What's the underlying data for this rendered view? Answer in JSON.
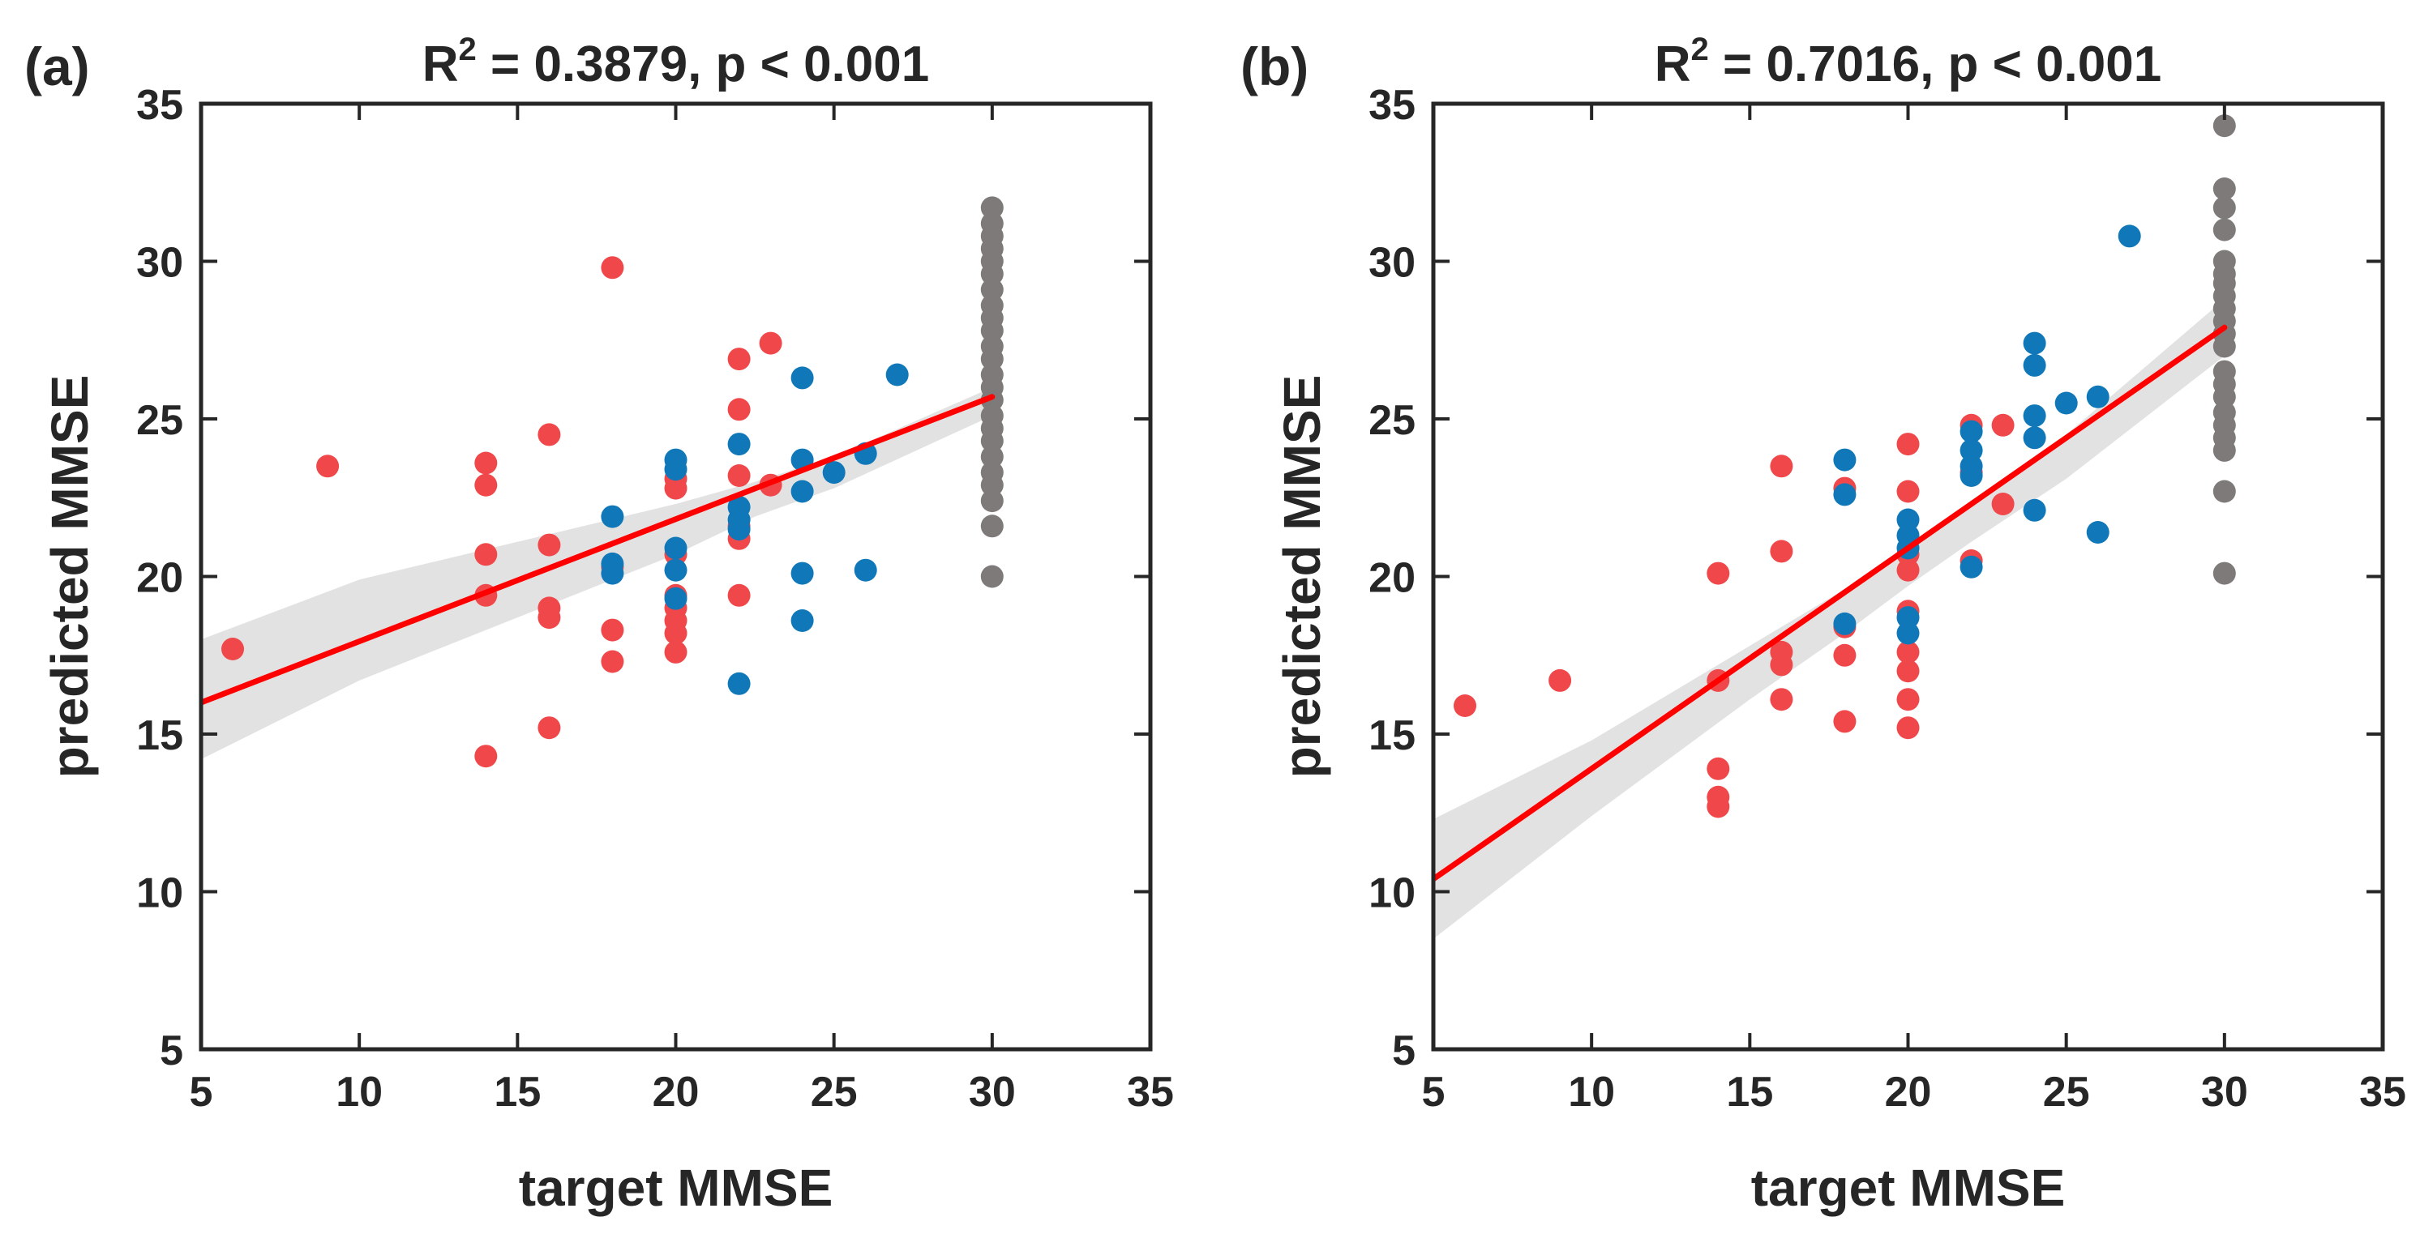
{
  "colors": {
    "red": "#f0484a",
    "blue": "#1078b8",
    "gray": "#7f7a7a",
    "fit": "#ff0000",
    "band": "#e2e2e2",
    "axis": "#262626"
  },
  "chart_data": [
    {
      "type": "scatter",
      "panel_label": "(a)",
      "title_main": "R",
      "title_sup": "2",
      "title_rest": " = 0.3879, p < 0.001",
      "xlabel": "target MMSE",
      "ylabel": "predicted MMSE",
      "xlim": [
        5,
        35
      ],
      "ylim": [
        5,
        35
      ],
      "xticks": [
        5,
        10,
        15,
        20,
        25,
        30,
        35
      ],
      "yticks": [
        5,
        10,
        15,
        20,
        25,
        30,
        35
      ],
      "fit": {
        "x": [
          5,
          30
        ],
        "y": [
          16.0,
          25.7
        ]
      },
      "band": {
        "x": [
          5,
          10,
          15,
          20,
          22.5,
          25,
          30
        ],
        "upper": [
          18.0,
          19.9,
          21.1,
          22.3,
          23.0,
          23.8,
          26.0
        ],
        "lower": [
          14.2,
          16.7,
          18.7,
          20.7,
          21.9,
          22.8,
          25.1
        ]
      },
      "series": [
        {
          "name": "red",
          "points": [
            [
              6,
              17.7
            ],
            [
              9,
              23.5
            ],
            [
              14,
              23.6
            ],
            [
              14,
              22.9
            ],
            [
              14,
              20.7
            ],
            [
              14,
              19.4
            ],
            [
              14,
              14.3
            ],
            [
              16,
              24.5
            ],
            [
              16,
              21.0
            ],
            [
              16,
              19.0
            ],
            [
              16,
              18.7
            ],
            [
              16,
              15.2
            ],
            [
              18,
              29.8
            ],
            [
              18,
              20.3
            ],
            [
              18,
              18.3
            ],
            [
              18,
              17.3
            ],
            [
              20,
              23.1
            ],
            [
              20,
              22.8
            ],
            [
              20,
              20.7
            ],
            [
              20,
              19.4
            ],
            [
              20,
              19.0
            ],
            [
              20,
              18.6
            ],
            [
              20,
              18.2
            ],
            [
              20,
              17.6
            ],
            [
              22,
              26.9
            ],
            [
              22,
              25.3
            ],
            [
              22,
              23.2
            ],
            [
              22,
              21.6
            ],
            [
              22,
              21.2
            ],
            [
              22,
              19.4
            ],
            [
              23,
              27.4
            ],
            [
              23,
              22.9
            ]
          ]
        },
        {
          "name": "blue",
          "points": [
            [
              18,
              21.9
            ],
            [
              18,
              20.4
            ],
            [
              18,
              20.1
            ],
            [
              20,
              23.7
            ],
            [
              20,
              23.4
            ],
            [
              20,
              20.9
            ],
            [
              20,
              20.2
            ],
            [
              20,
              19.3
            ],
            [
              22,
              24.2
            ],
            [
              22,
              22.2
            ],
            [
              22,
              21.8
            ],
            [
              22,
              21.5
            ],
            [
              22,
              16.6
            ],
            [
              24,
              26.3
            ],
            [
              24,
              23.7
            ],
            [
              24,
              22.7
            ],
            [
              24,
              20.1
            ],
            [
              24,
              18.6
            ],
            [
              25,
              23.3
            ],
            [
              26,
              23.9
            ],
            [
              26,
              20.2
            ],
            [
              27,
              26.4
            ]
          ]
        },
        {
          "name": "gray",
          "points": [
            [
              30,
              31.7
            ],
            [
              30,
              31.2
            ],
            [
              30,
              30.8
            ],
            [
              30,
              30.4
            ],
            [
              30,
              30.0
            ],
            [
              30,
              29.6
            ],
            [
              30,
              29.1
            ],
            [
              30,
              28.6
            ],
            [
              30,
              28.2
            ],
            [
              30,
              27.8
            ],
            [
              30,
              27.3
            ],
            [
              30,
              26.9
            ],
            [
              30,
              26.4
            ],
            [
              30,
              26.0
            ],
            [
              30,
              25.6
            ],
            [
              30,
              25.1
            ],
            [
              30,
              24.7
            ],
            [
              30,
              24.3
            ],
            [
              30,
              23.8
            ],
            [
              30,
              23.3
            ],
            [
              30,
              22.9
            ],
            [
              30,
              22.4
            ],
            [
              30,
              21.6
            ],
            [
              30,
              20.0
            ]
          ]
        }
      ]
    },
    {
      "type": "scatter",
      "panel_label": "(b)",
      "title_main": "R",
      "title_sup": "2",
      "title_rest": " = 0.7016, p < 0.001",
      "xlabel": "target MMSE",
      "ylabel": "predicted MMSE",
      "xlim": [
        5,
        35
      ],
      "ylim": [
        5,
        35
      ],
      "xticks": [
        5,
        10,
        15,
        20,
        25,
        30,
        35
      ],
      "yticks": [
        5,
        10,
        15,
        20,
        25,
        30,
        35
      ],
      "fit": {
        "x": [
          5,
          30
        ],
        "y": [
          10.4,
          27.9
        ]
      },
      "band": {
        "x": [
          5,
          10,
          15,
          18,
          20,
          22,
          25,
          30
        ],
        "upper": [
          12.3,
          14.8,
          17.8,
          19.6,
          20.9,
          22.3,
          24.5,
          28.8
        ],
        "lower": [
          8.5,
          12.4,
          16.1,
          18.2,
          19.7,
          21.1,
          23.1,
          27.0
        ]
      },
      "series": [
        {
          "name": "red",
          "points": [
            [
              6,
              15.9
            ],
            [
              9,
              16.7
            ],
            [
              14,
              20.1
            ],
            [
              14,
              16.7
            ],
            [
              14,
              13.9
            ],
            [
              14,
              13.0
            ],
            [
              14,
              12.7
            ],
            [
              16,
              23.5
            ],
            [
              16,
              20.8
            ],
            [
              16,
              17.6
            ],
            [
              16,
              17.2
            ],
            [
              16,
              16.1
            ],
            [
              18,
              22.8
            ],
            [
              18,
              18.4
            ],
            [
              18,
              17.5
            ],
            [
              18,
              15.4
            ],
            [
              20,
              24.2
            ],
            [
              20,
              22.7
            ],
            [
              20,
              20.7
            ],
            [
              20,
              20.2
            ],
            [
              20,
              18.9
            ],
            [
              20,
              17.6
            ],
            [
              20,
              17.0
            ],
            [
              20,
              16.1
            ],
            [
              20,
              15.2
            ],
            [
              22,
              24.8
            ],
            [
              22,
              23.3
            ],
            [
              22,
              20.5
            ],
            [
              23,
              24.8
            ],
            [
              23,
              22.3
            ]
          ]
        },
        {
          "name": "blue",
          "points": [
            [
              18,
              23.7
            ],
            [
              18,
              22.6
            ],
            [
              18,
              18.5
            ],
            [
              20,
              21.8
            ],
            [
              20,
              21.3
            ],
            [
              20,
              20.9
            ],
            [
              20,
              18.7
            ],
            [
              20,
              18.2
            ],
            [
              22,
              24.6
            ],
            [
              22,
              24.0
            ],
            [
              22,
              23.5
            ],
            [
              22,
              23.2
            ],
            [
              22,
              20.3
            ],
            [
              24,
              27.4
            ],
            [
              24,
              26.7
            ],
            [
              24,
              25.1
            ],
            [
              24,
              24.4
            ],
            [
              24,
              22.1
            ],
            [
              25,
              25.5
            ],
            [
              26,
              25.7
            ],
            [
              26,
              21.4
            ],
            [
              27,
              30.8
            ]
          ]
        },
        {
          "name": "gray",
          "points": [
            [
              30,
              34.3
            ],
            [
              30,
              32.3
            ],
            [
              30,
              31.7
            ],
            [
              30,
              31.0
            ],
            [
              30,
              30.0
            ],
            [
              30,
              29.6
            ],
            [
              30,
              29.3
            ],
            [
              30,
              28.9
            ],
            [
              30,
              28.5
            ],
            [
              30,
              28.1
            ],
            [
              30,
              27.7
            ],
            [
              30,
              27.3
            ],
            [
              30,
              26.5
            ],
            [
              30,
              26.1
            ],
            [
              30,
              25.7
            ],
            [
              30,
              25.2
            ],
            [
              30,
              24.8
            ],
            [
              30,
              24.4
            ],
            [
              30,
              24.0
            ],
            [
              30,
              22.7
            ],
            [
              30,
              20.1
            ]
          ]
        }
      ]
    }
  ]
}
